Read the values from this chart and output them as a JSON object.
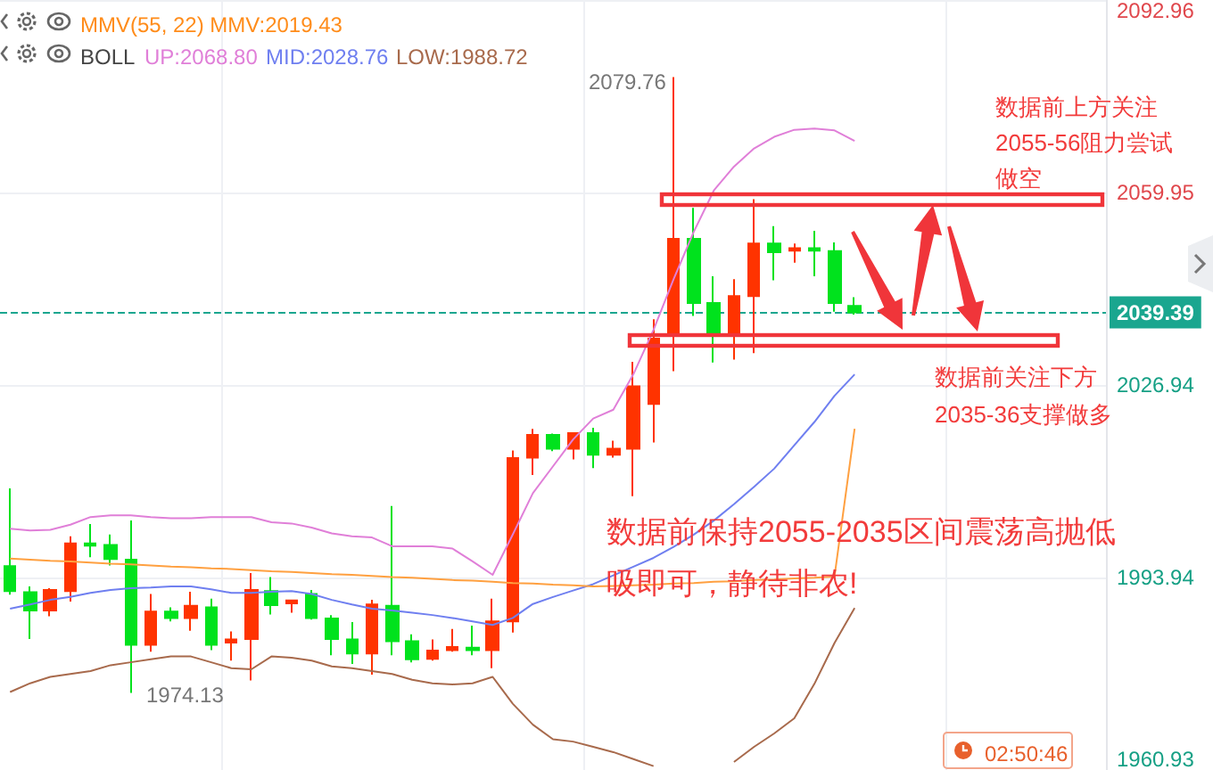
{
  "chart_data": {
    "type": "candlestick",
    "categories": [
      null,
      null,
      null,
      null,
      null,
      null,
      null,
      null,
      null,
      null,
      null,
      null,
      null,
      null,
      null,
      null,
      null,
      null,
      null,
      null,
      null,
      null,
      null,
      null,
      null,
      null,
      null,
      null,
      null,
      null,
      null,
      null,
      null,
      null,
      null,
      null,
      null,
      null,
      null,
      null,
      null,
      null,
      null
    ],
    "ohlc": [
      [
        1995.9,
        2009.2,
        1991.0,
        1991.6
      ],
      [
        1991.4,
        1992.4,
        1983.4,
        1988.3
      ],
      [
        1988.3,
        1992.1,
        1987.3,
        1991.8
      ],
      [
        1991.6,
        2001.0,
        1989.8,
        1999.8
      ],
      [
        1999.8,
        2003.1,
        1997.4,
        1999.4
      ],
      [
        1999.5,
        2001.3,
        1996.0,
        1997.1
      ],
      [
        1997.0,
        2003.7,
        1974.13,
        1982.4
      ],
      [
        1982.4,
        1991.1,
        1981.2,
        1988.1
      ],
      [
        1988.1,
        1988.8,
        1986.4,
        1987.0
      ],
      [
        1987.0,
        1991.5,
        1984.8,
        1989.1
      ],
      [
        1988.8,
        1990.3,
        1981.5,
        1982.4
      ],
      [
        1982.8,
        1984.7,
        1979.7,
        1983.3
      ],
      [
        1983.4,
        1994.7,
        1976.3,
        1991.8
      ],
      [
        1991.6,
        1994.0,
        1987.6,
        1989.2
      ],
      [
        1989.5,
        1990.0,
        1987.9,
        1990.0
      ],
      [
        1991.1,
        1991.8,
        1986.7,
        1987.0
      ],
      [
        1986.9,
        1987.5,
        1980.6,
        1983.4
      ],
      [
        1983.3,
        1986.3,
        1979.1,
        1980.9
      ],
      [
        1980.9,
        1990.1,
        1977.3,
        1989.3
      ],
      [
        1989.1,
        2006.2,
        1980.6,
        1983.0
      ],
      [
        1983.0,
        1984.2,
        1979.4,
        1979.9
      ],
      [
        1980.0,
        1983.3,
        1979.7,
        1981.4
      ],
      [
        1981.5,
        1985.1,
        1981.2,
        1982.0
      ],
      [
        1981.9,
        1985.7,
        1980.6,
        1981.5
      ],
      [
        1981.5,
        1990.3,
        1978.4,
        1986.4
      ],
      [
        1986.4,
        2015.7,
        1984.5,
        2014.4
      ],
      [
        2014.5,
        2019.4,
        2011.5,
        2018.4
      ],
      [
        2018.4,
        2018.6,
        2015.6,
        2016.0
      ],
      [
        2016.0,
        2018.7,
        2014.2,
        2018.7
      ],
      [
        2018.7,
        2019.6,
        2012.7,
        2015.0
      ],
      [
        2015.0,
        2017.4,
        2014.5,
        2016.0
      ],
      [
        2016.0,
        2030.9,
        2007.9,
        2026.7
      ],
      [
        2023.7,
        2038.2,
        2017.1,
        2034.9
      ],
      [
        2035.9,
        2079.76,
        2029.3,
        2052.0
      ],
      [
        2052.0,
        2057.3,
        2038.8,
        2041.0
      ],
      [
        2041.0,
        2045.6,
        2030.8,
        2035.7
      ],
      [
        2035.7,
        2045.1,
        2031.3,
        2042.2
      ],
      [
        2042.2,
        2058.8,
        2032.4,
        2051.2
      ],
      [
        2051.2,
        2054.2,
        2044.9,
        2049.7
      ],
      [
        2050.0,
        2051.2,
        2047.9,
        2050.4
      ],
      [
        2050.4,
        2053.4,
        2045.6,
        2050.0
      ],
      [
        2049.9,
        2051.4,
        2039.5,
        2041.0
      ],
      [
        2040.5,
        2042.0,
        2039.0,
        2039.39
      ]
    ],
    "colors": [
      "#00e21d",
      "#00e21d",
      "#ff3300",
      "#ff3300",
      "#00e21d",
      "#00e21d",
      "#00e21d",
      "#ff3300",
      "#00e21d",
      "#ff3300",
      "#00e21d",
      "#ff3300",
      "#ff3300",
      "#00e21d",
      "#ff3300",
      "#00e21d",
      "#00e21d",
      "#00e21d",
      "#ff3300",
      "#00e21d",
      "#00e21d",
      "#ff3300",
      "#ff3300",
      "#00e21d",
      "#ff3300",
      "#ff3300",
      "#ff3300",
      "#00e21d",
      "#ff3300",
      "#00e21d",
      "#ff3300",
      "#ff3300",
      "#ff3300",
      "#ff3300",
      "#00e21d",
      "#00e21d",
      "#ff3300",
      "#ff3300",
      "#00e21d",
      "#ff3300",
      "#00e21d",
      "#00e21d",
      "#00e21d"
    ],
    "series": [
      {
        "type": "line",
        "color": "#e07fd8",
        "values": [
          2002.3,
          2002.0,
          2002.1,
          2003.0,
          2004.3,
          2004.6,
          2004.6,
          2004.3,
          2004.1,
          2004.1,
          2004.3,
          2004.3,
          2004.3,
          2003.4,
          2003.2,
          2002.5,
          2001.5,
          2001.0,
          2000.8,
          1999.3,
          1999.3,
          1999.3,
          1998.9,
          1996.7,
          1994.4,
          2001.3,
          2008.4,
          2013.0,
          2017.6,
          2021.2,
          2022.7,
          2028.8,
          2036.4,
          2045.1,
          2053.2,
          2060.3,
          2064.4,
          2067.5,
          2069.5,
          2070.7,
          2070.9,
          2070.6,
          2068.8
        ]
      },
      {
        "type": "line",
        "color": "#6f7ff0",
        "values": [
          1988.6,
          1989.3,
          1990.1,
          1990.6,
          1991.3,
          1991.8,
          1992.1,
          1992.2,
          1992.4,
          1992.4,
          1991.9,
          1991.3,
          1991.3,
          1991.5,
          1991.6,
          1991.1,
          1990.1,
          1989.3,
          1988.6,
          1988.3,
          1987.9,
          1987.5,
          1987.0,
          1986.4,
          1985.8,
          1987.0,
          1989.4,
          1990.6,
          1991.7,
          1992.8,
          1994.3,
          1995.8,
          1997.3,
          1999.2,
          2001.3,
          2003.7,
          2006.5,
          2009.5,
          2012.6,
          2016.6,
          2020.6,
          2025.1,
          2028.76
        ]
      },
      {
        "type": "line",
        "color": "#a86a4c",
        "values": [
          1974.3,
          1975.8,
          1976.9,
          1977.4,
          1977.9,
          1978.9,
          1979.4,
          1979.9,
          1980.4,
          1980.4,
          1979.4,
          1978.4,
          1978.2,
          1980.4,
          1980.2,
          1979.7,
          1978.7,
          1978.4,
          1977.9,
          1977.4,
          1976.4,
          1975.8,
          1975.6,
          1975.8,
          1976.9,
          1972.3,
          1968.7,
          1966.2,
          1965.8,
          1964.9,
          1964.0,
          1962.8,
          1961.6,
          null,
          null,
          null,
          1962.3,
          1964.9,
          1967.2,
          1969.8,
          1975.7,
          1982.7,
          1988.72
        ]
      },
      {
        "type": "line",
        "color": "#ffa040",
        "values": [
          1997.2,
          1997.0,
          1996.8,
          1996.7,
          1996.5,
          1996.3,
          1996.2,
          1996.0,
          1995.8,
          1995.7,
          1995.5,
          1995.4,
          1995.2,
          1995.0,
          1994.9,
          1994.7,
          1994.5,
          1994.4,
          1994.2,
          1994.0,
          1993.9,
          1993.7,
          1993.5,
          1993.4,
          1993.2,
          1993.0,
          1992.9,
          1992.7,
          1992.6,
          1992.4,
          1992.5,
          1992.6,
          1992.7,
          1992.9,
          1993.0,
          1993.2,
          1993.3,
          1993.5,
          1993.6,
          1993.8,
          1993.9,
          1994.1,
          2019.43
        ]
      }
    ],
    "ylim": [
      1960.93,
      2092.96
    ],
    "yticks": [
      1960.93,
      1993.94,
      2026.94,
      2059.95,
      2092.96
    ],
    "ref_lines": [
      {
        "axis": "y",
        "value": 2039.39,
        "label": "2039.39",
        "color": "#1aa68f",
        "line_style": "dashed"
      }
    ],
    "grid": true,
    "marker": "none",
    "line_style": "solid",
    "annotations": [
      "MMV(55, 22) MMV:2019.43",
      "BOLL",
      "UP:2068.80",
      "MID:2028.76",
      "LOW:1988.72",
      "2079.76",
      "1974.13",
      "数据前上方关注2055-56阻力尝试做空",
      "数据前关注下方2035-36支撑做多",
      "数据前保持2055-2035区间震荡高抛低吸即可，静待非农!",
      "02:50:46"
    ]
  }
}
